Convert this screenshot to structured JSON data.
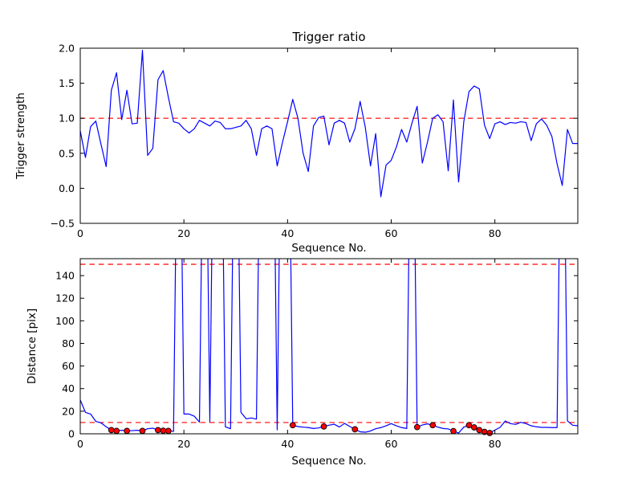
{
  "figure": {
    "title": "Trigger ratio",
    "background": "#ffffff"
  },
  "colors": {
    "line": "#0000ff",
    "threshold": "#ff0000",
    "marker_fill": "#ff0000",
    "marker_edge": "#000000",
    "axis": "#000000",
    "text": "#000000"
  },
  "chart_data": [
    {
      "type": "line",
      "title": "Trigger ratio",
      "xlabel": "Sequence No.",
      "ylabel": "Trigger strength",
      "xlim": [
        0,
        96
      ],
      "ylim": [
        -0.5,
        2.0
      ],
      "grid": false,
      "legend": null,
      "xticks": [
        {
          "v": 0,
          "label": "0"
        },
        {
          "v": 20,
          "label": "20"
        },
        {
          "v": 40,
          "label": "40"
        },
        {
          "v": 60,
          "label": "60"
        },
        {
          "v": 80,
          "label": "80"
        }
      ],
      "yticks": [
        {
          "v": -0.5,
          "label": "−0.5"
        },
        {
          "v": 0.0,
          "label": "0.0"
        },
        {
          "v": 0.5,
          "label": "0.5"
        },
        {
          "v": 1.0,
          "label": "1.0"
        },
        {
          "v": 1.5,
          "label": "1.5"
        },
        {
          "v": 2.0,
          "label": "2.0"
        }
      ],
      "thresholds": [
        1.0
      ],
      "series": [
        {
          "name": "trigger-ratio-line",
          "color": "#0000ff",
          "values": [
            0.82,
            0.44,
            0.88,
            0.96,
            0.63,
            0.31,
            1.4,
            1.65,
            0.98,
            1.4,
            0.92,
            0.93,
            1.97,
            0.47,
            0.57,
            1.55,
            1.68,
            1.3,
            0.95,
            0.93,
            0.85,
            0.79,
            0.85,
            0.97,
            0.93,
            0.89,
            0.96,
            0.94,
            0.85,
            0.85,
            0.87,
            0.89,
            0.97,
            0.85,
            0.47,
            0.85,
            0.89,
            0.85,
            0.32,
            0.65,
            0.95,
            1.27,
            1.0,
            0.5,
            0.24,
            0.89,
            1.01,
            1.03,
            0.62,
            0.93,
            0.97,
            0.93,
            0.66,
            0.85,
            1.24,
            0.87,
            0.32,
            0.78,
            -0.12,
            0.33,
            0.4,
            0.59,
            0.84,
            0.66,
            0.93,
            1.17,
            0.36,
            0.66,
            1.0,
            1.05,
            0.95,
            0.25,
            1.26,
            0.09,
            0.95,
            1.38,
            1.46,
            1.42,
            0.9,
            0.71,
            0.92,
            0.95,
            0.91,
            0.94,
            0.93,
            0.95,
            0.94,
            0.68,
            0.92,
            0.99,
            0.9,
            0.74,
            0.35,
            0.04,
            0.84,
            0.64,
            0.64
          ]
        }
      ],
      "markers": {
        "points": []
      }
    },
    {
      "type": "line",
      "title": "",
      "xlabel": "Sequence No.",
      "ylabel": "Distance [pix]",
      "xlim": [
        0,
        96
      ],
      "ylim": [
        0,
        155
      ],
      "grid": false,
      "legend": null,
      "xticks": [
        {
          "v": 0,
          "label": "0"
        },
        {
          "v": 20,
          "label": "20"
        },
        {
          "v": 40,
          "label": "40"
        },
        {
          "v": 60,
          "label": "60"
        },
        {
          "v": 80,
          "label": "80"
        }
      ],
      "yticks": [
        {
          "v": 0,
          "label": "0"
        },
        {
          "v": 20,
          "label": "20"
        },
        {
          "v": 40,
          "label": "40"
        },
        {
          "v": 60,
          "label": "60"
        },
        {
          "v": 80,
          "label": "80"
        },
        {
          "v": 100,
          "label": "100"
        },
        {
          "v": 120,
          "label": "120"
        },
        {
          "v": 140,
          "label": "140"
        }
      ],
      "thresholds": [
        150,
        10
      ],
      "series": [
        {
          "name": "distance-line",
          "color": "#0000ff",
          "values": [
            30,
            19,
            17.5,
            11,
            9.7,
            6.2,
            3.3,
            2.6,
            3.1,
            2.6,
            2.8,
            3.1,
            2.6,
            4.5,
            5.0,
            3.3,
            2.8,
            2.6,
            2.1,
            400,
            17.5,
            17.5,
            15.6,
            10.4,
            400,
            10.4,
            400,
            400,
            6.2,
            4.5,
            400,
            19,
            13.3,
            14,
            13,
            400,
            400,
            400,
            3.5,
            400,
            400,
            7.6,
            6.4,
            5.9,
            5.5,
            4.7,
            5.2,
            6.5,
            7.6,
            8.5,
            6.0,
            9.2,
            6.5,
            4.0,
            1.8,
            1.4,
            2.5,
            4.5,
            5.5,
            7.1,
            9.0,
            7.1,
            5.5,
            4.7,
            400,
            5.9,
            7.8,
            8.8,
            7.6,
            5.9,
            4.7,
            4.3,
            2.4,
            0.7,
            5.9,
            7.6,
            5.7,
            3.3,
            1.7,
            0.7,
            3.3,
            5.7,
            11.4,
            9.0,
            8.3,
            10.2,
            9.0,
            7.1,
            6.2,
            5.7,
            5.7,
            5.5,
            5.5,
            400,
            11.4,
            7.6,
            7.1
          ]
        }
      ],
      "markers": {
        "name": "triggered-points",
        "color": "#ff0000",
        "points": [
          [
            6,
            3.3
          ],
          [
            7,
            2.6
          ],
          [
            9,
            2.6
          ],
          [
            12,
            2.6
          ],
          [
            15,
            3.3
          ],
          [
            16,
            2.8
          ],
          [
            17,
            2.6
          ],
          [
            41,
            7.6
          ],
          [
            47,
            6.5
          ],
          [
            53,
            4.0
          ],
          [
            65,
            5.9
          ],
          [
            68,
            7.6
          ],
          [
            72,
            2.4
          ],
          [
            75,
            7.6
          ],
          [
            76,
            5.7
          ],
          [
            77,
            3.3
          ],
          [
            78,
            1.7
          ],
          [
            79,
            0.7
          ]
        ]
      }
    }
  ]
}
